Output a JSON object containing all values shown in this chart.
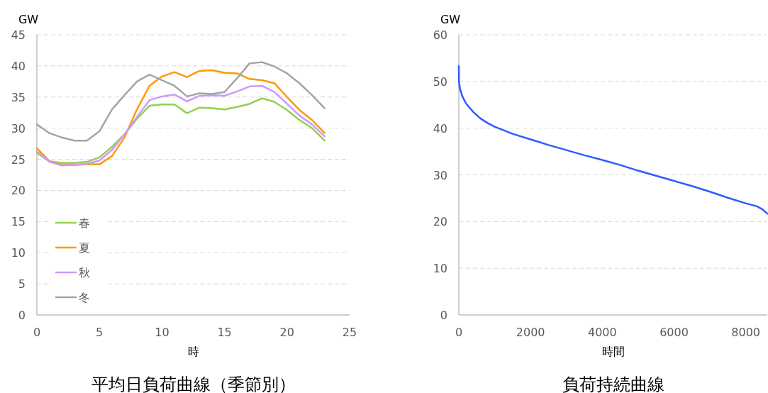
{
  "chart_data": [
    {
      "type": "line",
      "title": "平均日負荷曲線（季節別）",
      "xlabel": "時",
      "ylabel": "GW",
      "x": [
        0,
        1,
        2,
        3,
        4,
        5,
        6,
        7,
        8,
        9,
        10,
        11,
        12,
        13,
        14,
        15,
        16,
        17,
        18,
        19,
        20,
        21,
        22,
        23
      ],
      "series": [
        {
          "name": "春",
          "color": "#92d050",
          "values": [
            26.0,
            24.7,
            24.4,
            24.4,
            24.6,
            25.3,
            27.0,
            29.0,
            31.5,
            33.6,
            33.8,
            33.8,
            32.4,
            33.3,
            33.2,
            33.0,
            33.4,
            33.9,
            34.8,
            34.2,
            32.9,
            31.3,
            30.0,
            28.0
          ]
        },
        {
          "name": "夏",
          "color": "#ff9900",
          "values": [
            26.8,
            24.7,
            24.1,
            24.1,
            24.2,
            24.2,
            25.5,
            28.5,
            33.0,
            36.8,
            38.3,
            39.0,
            38.2,
            39.2,
            39.3,
            38.9,
            38.8,
            37.9,
            37.7,
            37.2,
            35.0,
            32.9,
            31.3,
            29.2
          ]
        },
        {
          "name": "秋",
          "color": "#cc99ff",
          "values": [
            26.3,
            24.6,
            24.0,
            24.1,
            24.3,
            24.8,
            26.5,
            29.0,
            31.8,
            34.5,
            35.1,
            35.4,
            34.3,
            35.2,
            35.3,
            35.2,
            35.9,
            36.7,
            36.8,
            35.8,
            33.9,
            32.0,
            30.6,
            28.7
          ]
        },
        {
          "name": "冬",
          "color": "#a5a5a5",
          "values": [
            30.6,
            29.2,
            28.5,
            28.0,
            28.0,
            29.5,
            33.0,
            35.3,
            37.5,
            38.6,
            37.7,
            36.8,
            35.1,
            35.6,
            35.5,
            35.8,
            38.0,
            40.4,
            40.6,
            39.9,
            38.8,
            37.2,
            35.3,
            33.2
          ]
        }
      ],
      "xlim": [
        0,
        25
      ],
      "xticks": [
        0,
        5,
        10,
        15,
        20,
        25
      ],
      "ylim": [
        0,
        45
      ],
      "yticks": [
        0,
        5,
        10,
        15,
        20,
        25,
        30,
        35,
        40,
        45
      ],
      "grid": "y",
      "legend": "bottom left",
      "marker": "none",
      "line_style": "solid"
    },
    {
      "type": "line",
      "title": "負荷持続曲線",
      "xlabel": "時間",
      "ylabel": "GW",
      "series": [
        {
          "color": "#2e5bff",
          "x": [
            0,
            5,
            30,
            100,
            200,
            300,
            400,
            600,
            800,
            1000,
            1500,
            2000,
            2500,
            3000,
            3500,
            4000,
            4500,
            5000,
            5500,
            6000,
            6500,
            7000,
            7500,
            8000,
            8300,
            8450,
            8600
          ],
          "values": [
            53.3,
            50.0,
            48.5,
            46.8,
            45.3,
            44.4,
            43.5,
            42.1,
            41.1,
            40.3,
            38.8,
            37.6,
            36.4,
            35.3,
            34.2,
            33.2,
            32.1,
            30.9,
            29.8,
            28.7,
            27.6,
            26.4,
            25.1,
            23.9,
            23.3,
            22.7,
            21.7
          ]
        }
      ],
      "xlim": [
        0,
        8600
      ],
      "xticks": [
        0,
        2000,
        4000,
        6000,
        8000
      ],
      "ylim": [
        0,
        60
      ],
      "yticks": [
        0,
        10,
        20,
        30,
        40,
        50,
        60
      ],
      "grid": "y",
      "legend": false,
      "marker": "none",
      "line_style": "solid"
    }
  ]
}
